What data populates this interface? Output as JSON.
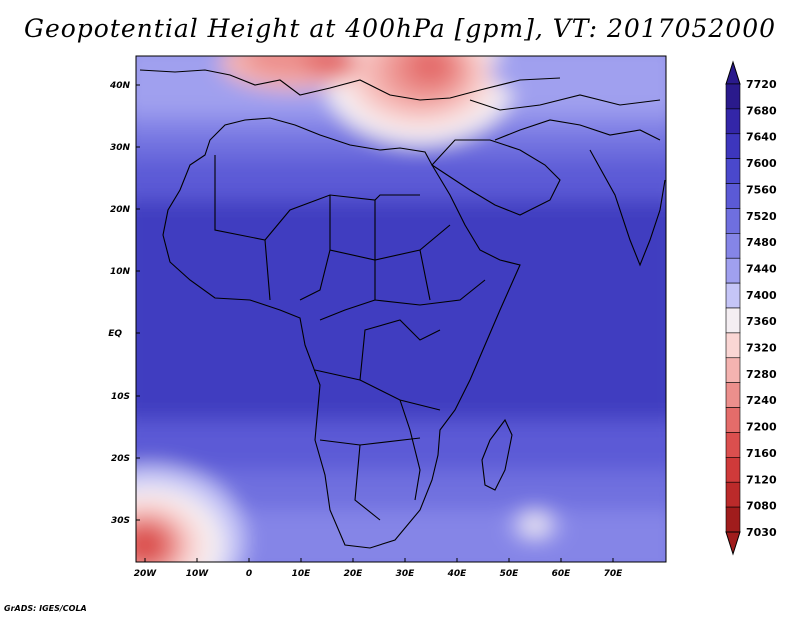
{
  "title": "Geopotential Height at 400hPa [gpm], VT: 2017052000",
  "credit": "GrADS: IGES/COLA",
  "map": {
    "lat_labels": [
      "40N",
      "30N",
      "20N",
      "10N",
      "EQ",
      "10S",
      "20S",
      "30S"
    ],
    "lon_labels": [
      "20W",
      "10W",
      "0",
      "10E",
      "20E",
      "30E",
      "40E",
      "50E",
      "60E",
      "70E"
    ],
    "region": "Africa / Middle East / Indian Ocean"
  },
  "colorbar": {
    "labels": [
      "7720",
      "7680",
      "7640",
      "7600",
      "7560",
      "7520",
      "7480",
      "7440",
      "7400",
      "7360",
      "7320",
      "7280",
      "7240",
      "7200",
      "7160",
      "7120",
      "7080",
      "7030"
    ],
    "colors": [
      "#2a1a8c",
      "#3326a8",
      "#3d36bd",
      "#4a48cc",
      "#5b5ad6",
      "#6f6fdf",
      "#8585e7",
      "#a0a0ef",
      "#c5c5f7",
      "#f4eef2",
      "#fad6d4",
      "#f4b3b0",
      "#ec8f8c",
      "#e46c6a",
      "#db4f4e",
      "#cf3a3a",
      "#bb2a2a",
      "#a01c1c"
    ]
  }
}
